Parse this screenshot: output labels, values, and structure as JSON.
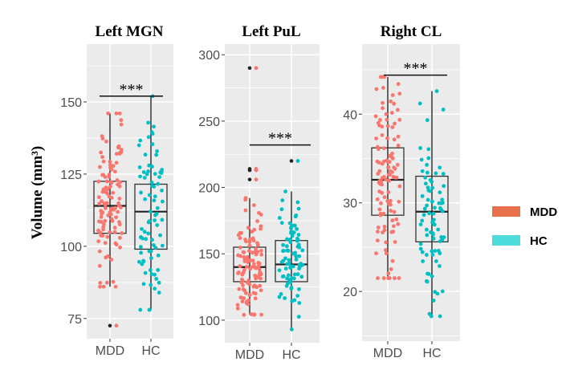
{
  "chart_data": [
    {
      "type": "box",
      "title": "Left MGN",
      "ylabel": "Volume (mm³)",
      "ylim": [
        68,
        170
      ],
      "yticks": [
        75,
        100,
        125,
        150
      ],
      "categories": [
        "MDD",
        "HC"
      ],
      "groups": [
        {
          "name": "MDD",
          "min": 86,
          "q1": 104.5,
          "median": 114,
          "q3": 122.5,
          "max": 146,
          "outliers": [
            72.5
          ]
        },
        {
          "name": "HC",
          "min": 78,
          "q1": 99,
          "median": 112,
          "q3": 121.5,
          "max": 152,
          "outliers": []
        }
      ],
      "significance": {
        "label": "***",
        "y": 152
      }
    },
    {
      "type": "box",
      "title": "Left PuL",
      "ylim": [
        83,
        308
      ],
      "yticks": [
        100,
        150,
        200,
        250,
        300
      ],
      "categories": [
        "MDD",
        "HC"
      ],
      "groups": [
        {
          "name": "MDD",
          "min": 104,
          "q1": 129,
          "median": 140,
          "q3": 155,
          "max": 192,
          "outliers": [
            206,
            213,
            214,
            290
          ]
        },
        {
          "name": "HC",
          "min": 93,
          "q1": 129,
          "median": 142,
          "q3": 160,
          "max": 197,
          "outliers": [
            220
          ]
        }
      ],
      "significance": {
        "label": "***",
        "y": 232
      }
    },
    {
      "type": "box",
      "title": "Right CL",
      "ylim": [
        14.4,
        47.9
      ],
      "yticks": [
        20,
        30,
        40
      ],
      "categories": [
        "MDD",
        "HC"
      ],
      "groups": [
        {
          "name": "MDD",
          "min": 21.5,
          "q1": 28.6,
          "median": 32.6,
          "q3": 36.2,
          "max": 44.2,
          "outliers": []
        },
        {
          "name": "HC",
          "min": 17.2,
          "q1": 25.6,
          "median": 29,
          "q3": 33,
          "max": 42.6,
          "outliers": []
        }
      ],
      "significance": {
        "label": "***",
        "y": 44.4
      }
    }
  ],
  "legend": {
    "placement": "right",
    "items": [
      {
        "label": "MDD",
        "color": "#E8704A"
      },
      {
        "label": "HC",
        "color": "#4DDCDB"
      }
    ]
  },
  "colors": {
    "MDD": "#F8766D",
    "HC": "#00BFC4",
    "panel_bg": "#EBEBEB"
  }
}
